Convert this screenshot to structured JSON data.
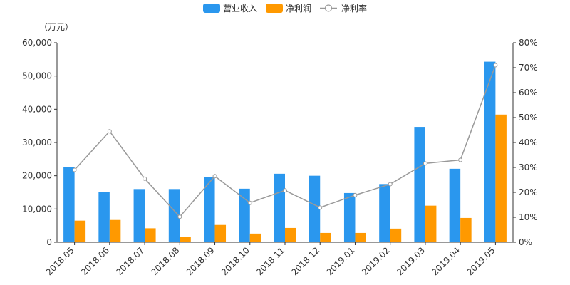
{
  "chart_data": {
    "type": "bar",
    "unit_label": "（万元）",
    "categories": [
      "2018.05",
      "2018.06",
      "2018.07",
      "2018.08",
      "2018.09",
      "2018.10",
      "2018.11",
      "2018.12",
      "2019.01",
      "2019.02",
      "2019.03",
      "2019.04",
      "2019.05"
    ],
    "series": [
      {
        "name": "营业收入",
        "kind": "bar",
        "axis": "left",
        "color": "#2a97ee",
        "values": [
          22500,
          15000,
          16000,
          16000,
          19600,
          16100,
          20600,
          20000,
          14800,
          17500,
          34700,
          22100,
          54300
        ]
      },
      {
        "name": "净利润",
        "kind": "bar",
        "axis": "left",
        "color": "#ff9900",
        "values": [
          6500,
          6700,
          4200,
          1600,
          5200,
          2600,
          4300,
          2800,
          2800,
          4100,
          11000,
          7300,
          38400
        ]
      },
      {
        "name": "净利率",
        "kind": "line",
        "axis": "right",
        "color": "#999999",
        "values": [
          29,
          44.5,
          25.5,
          10.2,
          26.5,
          15.8,
          20.8,
          13.9,
          18.9,
          23.3,
          31.6,
          33,
          71
        ]
      }
    ],
    "y_left": {
      "range": [
        0,
        60000
      ],
      "ticks": [
        "0",
        "10,000",
        "20,000",
        "30,000",
        "40,000",
        "50,000",
        "60,000"
      ]
    },
    "y_right": {
      "range": [
        0,
        80
      ],
      "ticks": [
        "0%",
        "10%",
        "20%",
        "30%",
        "40%",
        "50%",
        "60%",
        "70%",
        "80%"
      ]
    },
    "legend_position": "top-center",
    "grid": false
  }
}
